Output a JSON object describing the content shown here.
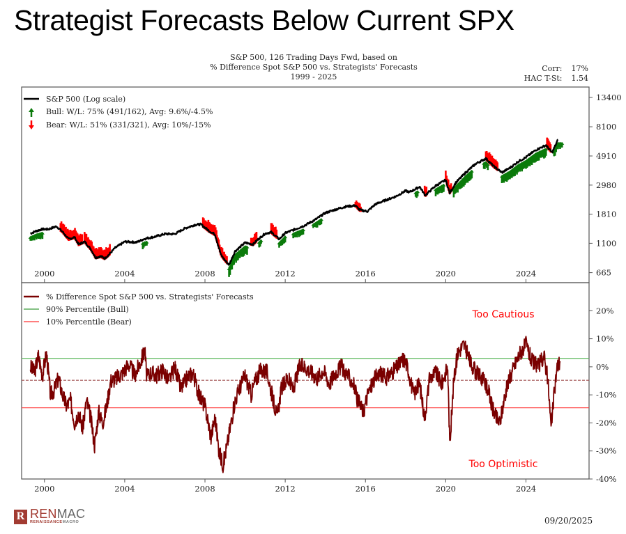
{
  "slide_title": "Strategist Forecasts Below Current SPX",
  "footer": {
    "logo_main_red": "REN",
    "logo_main_gray": "MAC",
    "logo_sub_red": "RENAISSANCE",
    "logo_sub_gray": "MACRO",
    "logo_mark": "R",
    "date": "09/20/2025"
  },
  "chart_data": [
    {
      "type": "line",
      "panel": "top",
      "title_lines": [
        "S&P 500, 126 Trading Days Fwd, based on",
        "% Difference Spot S&P 500 vs. Strategists' Forecasts",
        "1999 - 2025"
      ],
      "stats": [
        {
          "label": "Corr:",
          "value": "17%"
        },
        {
          "label": "HAC T-St:",
          "value": "1.54"
        }
      ],
      "ylabel": "S&P 500 (log scale)",
      "yscale": "log",
      "ylim": [
        560,
        16000
      ],
      "yticks": [
        13400,
        8100,
        4910,
        2980,
        1810,
        1100,
        665
      ],
      "yticklabels": [
        "13400",
        "8100",
        "4910",
        "2980",
        "1810",
        "1100",
        "665"
      ],
      "xlim": [
        1999.0,
        2027.3
      ],
      "xticks": [
        2000,
        2004,
        2008,
        2012,
        2016,
        2020,
        2024
      ],
      "xticklabels": [
        "2000",
        "2004",
        "2008",
        "2012",
        "2016",
        "2020",
        "2024"
      ],
      "legend": [
        {
          "label": "S&P 500 (Log scale)",
          "color": "#000000",
          "marker": "line"
        },
        {
          "label": "Bull:  W/L: 75% (491/162), Avg: 9.6%/-4.5%",
          "color": "#0a7a0a",
          "marker": "up-arrow"
        },
        {
          "label": "Bear:  W/L: 51% (331/321), Avg: 10%/-15%",
          "color": "#ff0000",
          "marker": "down-arrow"
        }
      ],
      "legend_position": "top-left",
      "series": [
        {
          "name": "S&P 500",
          "color": "#000000",
          "x": [
            1999.3,
            1999.6,
            1999.9,
            2000.2,
            2000.6,
            2000.9,
            2001.2,
            2001.5,
            2001.7,
            2002.0,
            2002.3,
            2002.55,
            2002.8,
            2003.0,
            2003.2,
            2003.5,
            2004.0,
            2004.6,
            2005.0,
            2005.5,
            2006.0,
            2006.5,
            2007.0,
            2007.5,
            2007.8,
            2008.2,
            2008.5,
            2008.8,
            2009.0,
            2009.2,
            2009.5,
            2010.0,
            2010.4,
            2010.6,
            2011.0,
            2011.3,
            2011.7,
            2012.0,
            2012.5,
            2013.0,
            2013.5,
            2014.0,
            2014.5,
            2015.0,
            2015.5,
            2015.7,
            2016.1,
            2016.5,
            2017.0,
            2017.5,
            2018.0,
            2018.2,
            2018.7,
            2018.98,
            2019.5,
            2020.0,
            2020.2,
            2020.5,
            2021.0,
            2021.5,
            2022.0,
            2022.4,
            2022.8,
            2023.2,
            2023.6,
            2024.0,
            2024.5,
            2025.0,
            2025.3,
            2025.6
          ],
          "y": [
            1300,
            1360,
            1400,
            1400,
            1470,
            1340,
            1180,
            1220,
            1080,
            1130,
            1000,
            860,
            880,
            850,
            900,
            1010,
            1130,
            1120,
            1190,
            1230,
            1290,
            1290,
            1420,
            1510,
            1520,
            1360,
            1280,
            900,
            820,
            760,
            960,
            1110,
            1080,
            1160,
            1300,
            1330,
            1180,
            1310,
            1400,
            1500,
            1650,
            1850,
            1960,
            2060,
            2100,
            1950,
            1900,
            2150,
            2300,
            2450,
            2700,
            2640,
            2900,
            2500,
            2950,
            3250,
            2600,
            3100,
            3700,
            4300,
            4700,
            4100,
            3700,
            4000,
            4450,
            4800,
            5450,
            5900,
            5200,
            6500
          ]
        }
      ]
    },
    {
      "type": "line",
      "panel": "bottom",
      "ylim": [
        -40,
        30
      ],
      "yticks": [
        20,
        10,
        0,
        -10,
        -20,
        -30,
        -40
      ],
      "yticklabels": [
        "20%",
        "10%",
        "0%",
        "-10%",
        "-20%",
        "-30%",
        "-40%"
      ],
      "xticks": [
        2000,
        2004,
        2008,
        2012,
        2016,
        2020,
        2024
      ],
      "xticklabels": [
        "2000",
        "2004",
        "2008",
        "2012",
        "2016",
        "2020",
        "2024"
      ],
      "legend": [
        {
          "label": "% Difference Spot S&P 500 vs. Strategists' Forecasts",
          "color": "#7a0000"
        },
        {
          "label": "90% Percentile (Bull)",
          "color": "#3a9a3a"
        },
        {
          "label": "10% Percentile (Bear)",
          "color": "#ff3030"
        }
      ],
      "legend_position": "top-left",
      "reference_lines": [
        {
          "name": "90% Percentile (Bull)",
          "y": 3.0,
          "color": "#5cb85c"
        },
        {
          "name": "median",
          "y": -4.8,
          "color": "#a05050",
          "style": "dashed"
        },
        {
          "name": "10% Percentile (Bear)",
          "y": -14.6,
          "color": "#ff4040"
        }
      ],
      "annotations": [
        {
          "text": "Too Cautious",
          "color": "#ff0000"
        },
        {
          "text": "Too Optimistic",
          "color": "#ff0000"
        }
      ],
      "series": [
        {
          "name": "% Difference Spot S&P 500 vs. Strategists' Forecasts",
          "color": "#7a0000",
          "x": [
            1999.3,
            1999.5,
            1999.7,
            1999.9,
            2000.1,
            2000.3,
            2000.5,
            2000.7,
            2000.9,
            2001.1,
            2001.3,
            2001.5,
            2001.7,
            2001.9,
            2002.1,
            2002.3,
            2002.5,
            2002.7,
            2002.9,
            2003.1,
            2003.3,
            2003.6,
            2003.9,
            2004.2,
            2004.5,
            2004.8,
            2005.0,
            2005.1,
            2005.3,
            2005.6,
            2005.9,
            2006.2,
            2006.5,
            2006.8,
            2007.1,
            2007.4,
            2007.7,
            2008.0,
            2008.3,
            2008.5,
            2008.7,
            2008.9,
            2009.1,
            2009.3,
            2009.5,
            2009.7,
            2010.0,
            2010.3,
            2010.5,
            2010.8,
            2011.1,
            2011.4,
            2011.6,
            2011.8,
            2012.1,
            2012.4,
            2012.7,
            2013.0,
            2013.3,
            2013.6,
            2013.9,
            2014.2,
            2014.5,
            2014.8,
            2015.1,
            2015.4,
            2015.6,
            2015.9,
            2016.1,
            2016.4,
            2016.7,
            2017.0,
            2017.3,
            2017.6,
            2017.9,
            2018.1,
            2018.4,
            2018.7,
            2018.95,
            2019.2,
            2019.5,
            2019.8,
            2020.1,
            2020.2,
            2020.4,
            2020.6,
            2020.9,
            2021.2,
            2021.5,
            2021.8,
            2022.1,
            2022.3,
            2022.5,
            2022.7,
            2022.9,
            2023.1,
            2023.4,
            2023.7,
            2024.0,
            2024.3,
            2024.6,
            2024.9,
            2025.1,
            2025.25,
            2025.4,
            2025.55,
            2025.7
          ],
          "y": [
            0,
            -2,
            4,
            -3,
            5,
            -10,
            -8,
            -4,
            -10,
            -14,
            -12,
            -20,
            -16,
            -22,
            -12,
            -18,
            -28,
            -16,
            -20,
            -14,
            -5,
            -4,
            -2,
            1,
            -3,
            2,
            6,
            -4,
            -2,
            -3,
            -1,
            -5,
            0,
            -8,
            -4,
            -2,
            -10,
            -14,
            -25,
            -18,
            -30,
            -35,
            -28,
            -20,
            -12,
            -8,
            -3,
            -10,
            -5,
            -1,
            -2,
            -12,
            -18,
            -8,
            -4,
            -8,
            0,
            0,
            -2,
            -4,
            -1,
            -6,
            -2,
            0,
            -3,
            -6,
            -12,
            -16,
            -10,
            -5,
            -2,
            -4,
            -2,
            0,
            3,
            0,
            -10,
            -6,
            -18,
            -4,
            -2,
            -6,
            0,
            -28,
            -5,
            5,
            8,
            2,
            -2,
            -4,
            -8,
            -14,
            -18,
            -20,
            -12,
            -6,
            0,
            5,
            8,
            2,
            0,
            4,
            -5,
            -22,
            -10,
            0,
            2
          ]
        }
      ]
    }
  ]
}
